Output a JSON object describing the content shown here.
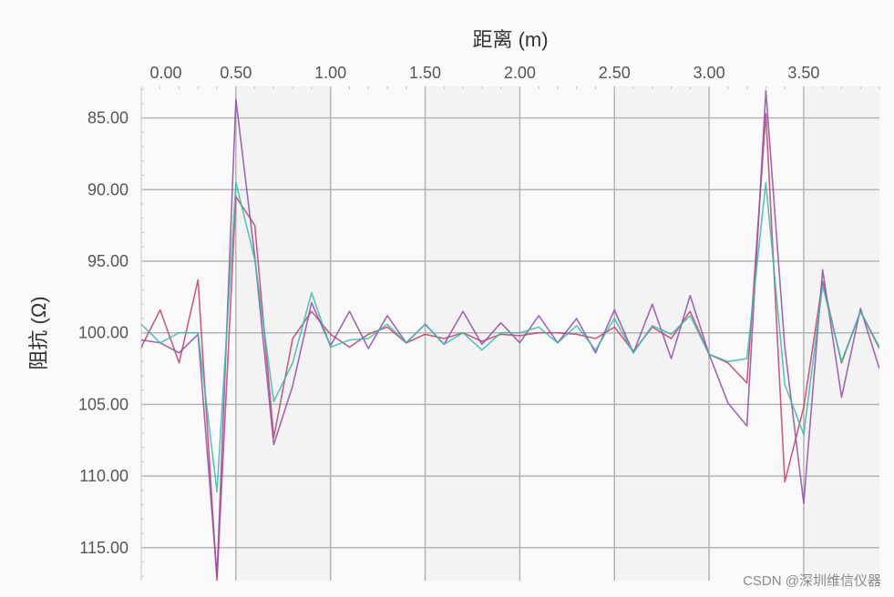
{
  "chart_data": {
    "type": "line",
    "xlabel": "距离 (m)",
    "ylabel": "阻抗 (Ω)",
    "xaxis_position": "top",
    "yaxis_inverted": true,
    "xlim": [
      0,
      3.9
    ],
    "ylim": [
      82.8,
      117.3
    ],
    "xticks": [
      "0.00",
      "0.50",
      "1.00",
      "1.50",
      "2.00",
      "2.50",
      "3.00",
      "3.50"
    ],
    "yticks": [
      "85.00",
      "90.00",
      "95.00",
      "100.00",
      "105.00",
      "110.00",
      "115.00"
    ],
    "grid": true,
    "legend": "none",
    "x": [
      0,
      0.1,
      0.2,
      0.3,
      0.4,
      0.5,
      0.6,
      0.7,
      0.8,
      0.9,
      1.0,
      1.1,
      1.2,
      1.3,
      1.4,
      1.5,
      1.6,
      1.7,
      1.8,
      1.9,
      2.0,
      2.1,
      2.2,
      2.3,
      2.4,
      2.5,
      2.6,
      2.7,
      2.8,
      2.9,
      3.0,
      3.1,
      3.2,
      3.3,
      3.4,
      3.5,
      3.6,
      3.7,
      3.8,
      3.9
    ],
    "series": [
      {
        "color": "#c0426e",
        "values": [
          101.0,
          98.4,
          102.1,
          96.3,
          117.3,
          90.5,
          92.5,
          107.3,
          100.4,
          98.5,
          100.1,
          101.0,
          100.1,
          99.6,
          100.7,
          100.1,
          100.4,
          100.0,
          100.6,
          100.1,
          100.2,
          100.0,
          100.0,
          100.1,
          100.4,
          99.6,
          101.3,
          99.6,
          100.4,
          98.5,
          101.5,
          102.1,
          103.5,
          84.7,
          110.4,
          105.2,
          96.4,
          102.1,
          98.5,
          101.1
        ]
      },
      {
        "color": "#8e4ea8",
        "values": [
          100.5,
          100.7,
          101.4,
          100.1,
          117.0,
          83.7,
          94.7,
          107.8,
          103.7,
          97.9,
          100.9,
          98.5,
          101.1,
          98.8,
          100.7,
          99.4,
          100.8,
          98.5,
          100.8,
          99.3,
          100.7,
          98.8,
          100.7,
          99.0,
          101.4,
          98.4,
          101.4,
          98.0,
          101.8,
          97.4,
          101.5,
          104.9,
          106.5,
          83.1,
          101.0,
          111.9,
          95.6,
          104.5,
          98.3,
          102.5
        ]
      },
      {
        "color": "#3fb8a8",
        "values": [
          99.4,
          100.7,
          100.0,
          100.0,
          111.1,
          89.5,
          94.9,
          104.8,
          102.1,
          97.2,
          101.0,
          100.5,
          100.4,
          99.4,
          100.7,
          99.4,
          100.8,
          100.0,
          101.2,
          100.0,
          100.0,
          99.6,
          100.7,
          99.5,
          101.2,
          99.0,
          101.4,
          99.5,
          100.1,
          98.8,
          101.5,
          102.0,
          101.8,
          89.5,
          103.6,
          107.1,
          96.7,
          102.0,
          98.5,
          101.0
        ]
      }
    ]
  },
  "watermark": "CSDN @深圳维信仪器"
}
